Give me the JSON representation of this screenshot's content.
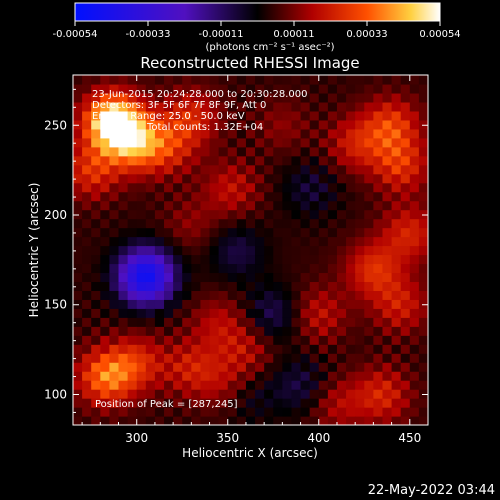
{
  "chart_data": {
    "type": "heatmap",
    "title": "Reconstructed RHESSI Image",
    "xlabel": "Heliocentric X (arcsec)",
    "ylabel": "Heliocentric Y (arcsec)",
    "xlim": [
      265,
      460
    ],
    "ylim": [
      83,
      278
    ],
    "x_ticks": [
      300,
      350,
      400,
      450
    ],
    "y_ticks": [
      100,
      150,
      200,
      250
    ],
    "colorbar": {
      "range": [
        -0.00054,
        0.00054
      ],
      "ticks": [
        "-0.00054",
        "-0.00033",
        "-0.00011",
        "0.00011",
        "0.00033",
        "0.00054"
      ],
      "units_label": "(photons cm⁻² s⁻¹ asec⁻²)"
    },
    "info_lines": [
      "23-Jun-2015 20:24:28.000 to 20:30:28.000",
      "Detectors: 3F 5F 6F 7F 8F 9F, Att 0",
      "Energy Range: 25.0 - 50.0 keV",
      "Total counts: 1.32E+04"
    ],
    "peak_label": "Position of Peak = [287,245]",
    "peak_position": [
      287,
      245
    ],
    "hotspots": [
      {
        "x": 287,
        "y": 252,
        "value": 0.00054
      },
      {
        "x": 300,
        "y": 240,
        "value": 0.0003
      },
      {
        "x": 275,
        "y": 225,
        "value": 0.0002
      },
      {
        "x": 330,
        "y": 255,
        "value": 0.00018
      },
      {
        "x": 318,
        "y": 238,
        "value": 0.00016
      },
      {
        "x": 352,
        "y": 215,
        "value": 0.00014
      },
      {
        "x": 440,
        "y": 250,
        "value": 0.00022
      },
      {
        "x": 420,
        "y": 240,
        "value": 0.00016
      },
      {
        "x": 445,
        "y": 228,
        "value": 0.0002
      },
      {
        "x": 450,
        "y": 190,
        "value": 0.00018
      },
      {
        "x": 430,
        "y": 170,
        "value": 0.0002
      },
      {
        "x": 445,
        "y": 150,
        "value": 0.00016
      },
      {
        "x": 400,
        "y": 145,
        "value": 0.00014
      },
      {
        "x": 435,
        "y": 100,
        "value": 0.00018
      },
      {
        "x": 410,
        "y": 95,
        "value": 0.00012
      },
      {
        "x": 283,
        "y": 110,
        "value": 0.0003
      },
      {
        "x": 300,
        "y": 118,
        "value": 0.00018
      },
      {
        "x": 330,
        "y": 115,
        "value": 0.00016
      },
      {
        "x": 350,
        "y": 105,
        "value": 0.00012
      },
      {
        "x": 360,
        "y": 125,
        "value": 0.00012
      },
      {
        "x": 345,
        "y": 140,
        "value": 0.00012
      },
      {
        "x": 380,
        "y": 250,
        "value": 8e-05
      },
      {
        "x": 330,
        "y": 195,
        "value": 8e-05
      },
      {
        "x": 305,
        "y": 168,
        "value": -0.0002
      },
      {
        "x": 305,
        "y": 165,
        "value": -0.00032
      },
      {
        "x": 355,
        "y": 180,
        "value": -0.00012
      },
      {
        "x": 375,
        "y": 145,
        "value": -0.00014
      },
      {
        "x": 395,
        "y": 215,
        "value": -0.0001
      },
      {
        "x": 390,
        "y": 105,
        "value": -0.00012
      },
      {
        "x": 360,
        "y": 100,
        "value": -0.0001
      }
    ]
  },
  "footer": {
    "timestamp": "22-May-2022 03:44"
  }
}
